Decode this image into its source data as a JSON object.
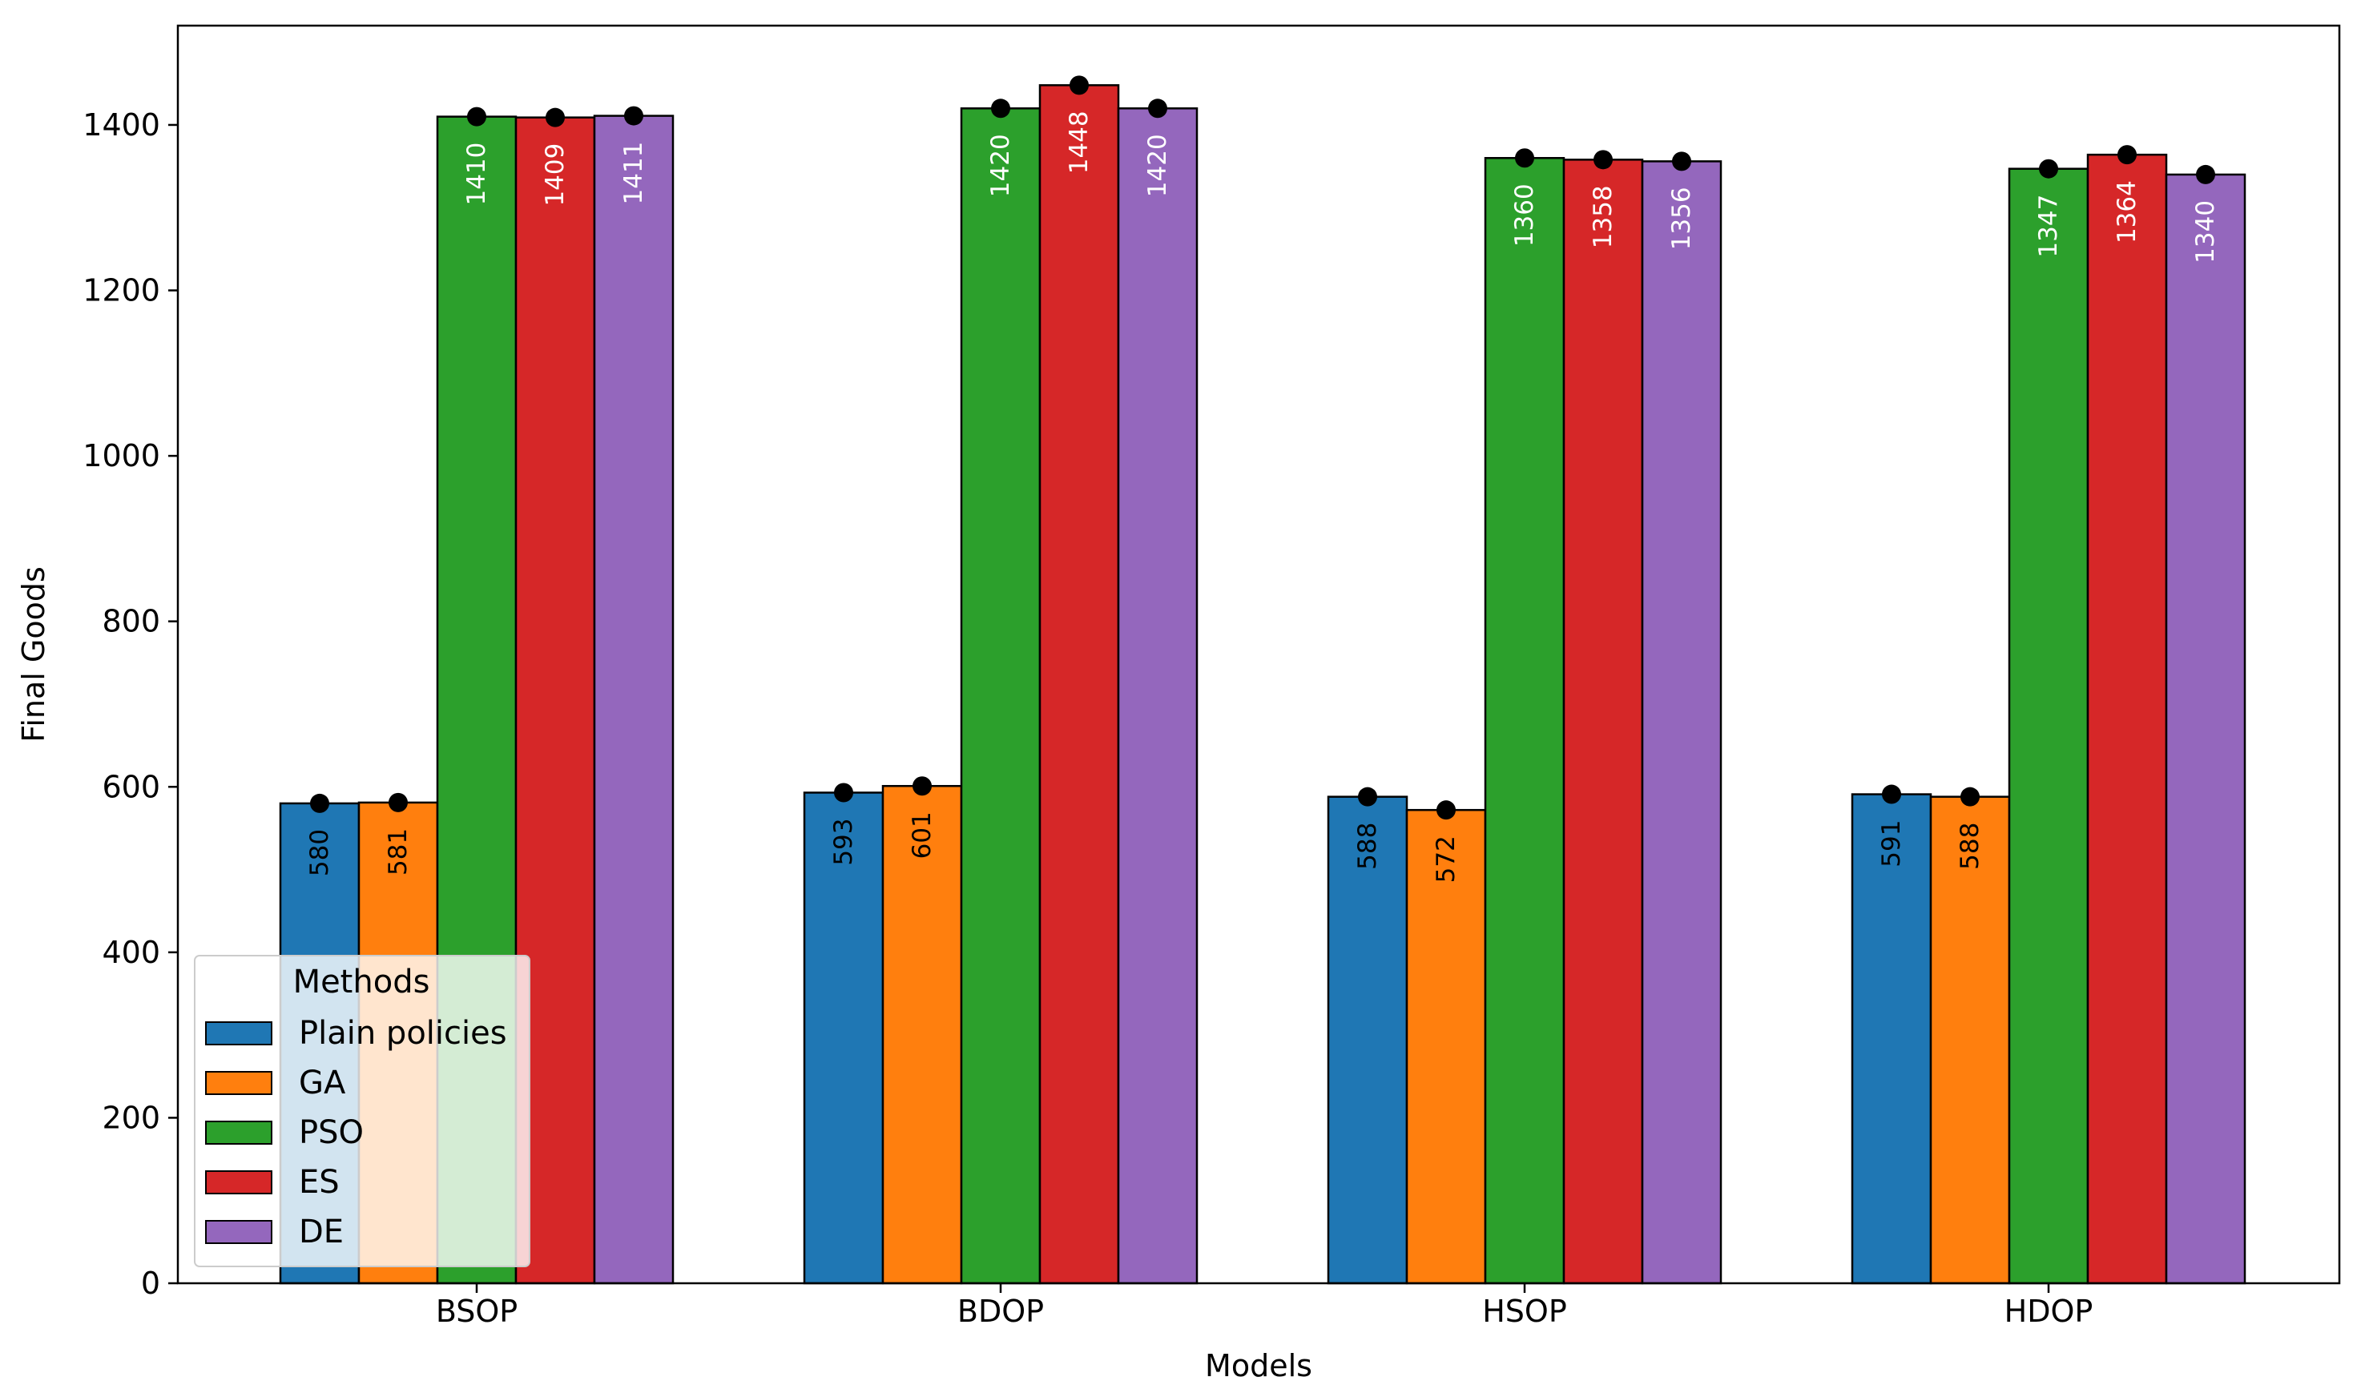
{
  "chart_data": {
    "type": "bar",
    "title": "",
    "xlabel": "Models",
    "ylabel": "Final Goods",
    "categories": [
      "BSOP",
      "BDOP",
      "HSOP",
      "HDOP"
    ],
    "yticks": [
      0,
      200,
      400,
      600,
      800,
      1000,
      1200,
      1400
    ],
    "ylim": [
      0,
      1520
    ],
    "grid": false,
    "legend": {
      "title": "Methods",
      "placement": "lower-left"
    },
    "series": [
      {
        "name": "Plain policies",
        "color": "#1f77b4",
        "values": [
          580,
          593,
          588,
          591
        ],
        "label_color": "#000000"
      },
      {
        "name": "GA",
        "color": "#ff7f0e",
        "values": [
          581,
          601,
          572,
          588
        ],
        "label_color": "#000000"
      },
      {
        "name": "PSO",
        "color": "#2ca02c",
        "values": [
          1410,
          1420,
          1360,
          1347
        ],
        "label_color": "#ffffff"
      },
      {
        "name": "ES",
        "color": "#d62728",
        "values": [
          1409,
          1448,
          1358,
          1364
        ],
        "label_color": "#ffffff"
      },
      {
        "name": "DE",
        "color": "#9467bd",
        "values": [
          1411,
          1420,
          1356,
          1340
        ],
        "label_color": "#ffffff"
      }
    ]
  }
}
